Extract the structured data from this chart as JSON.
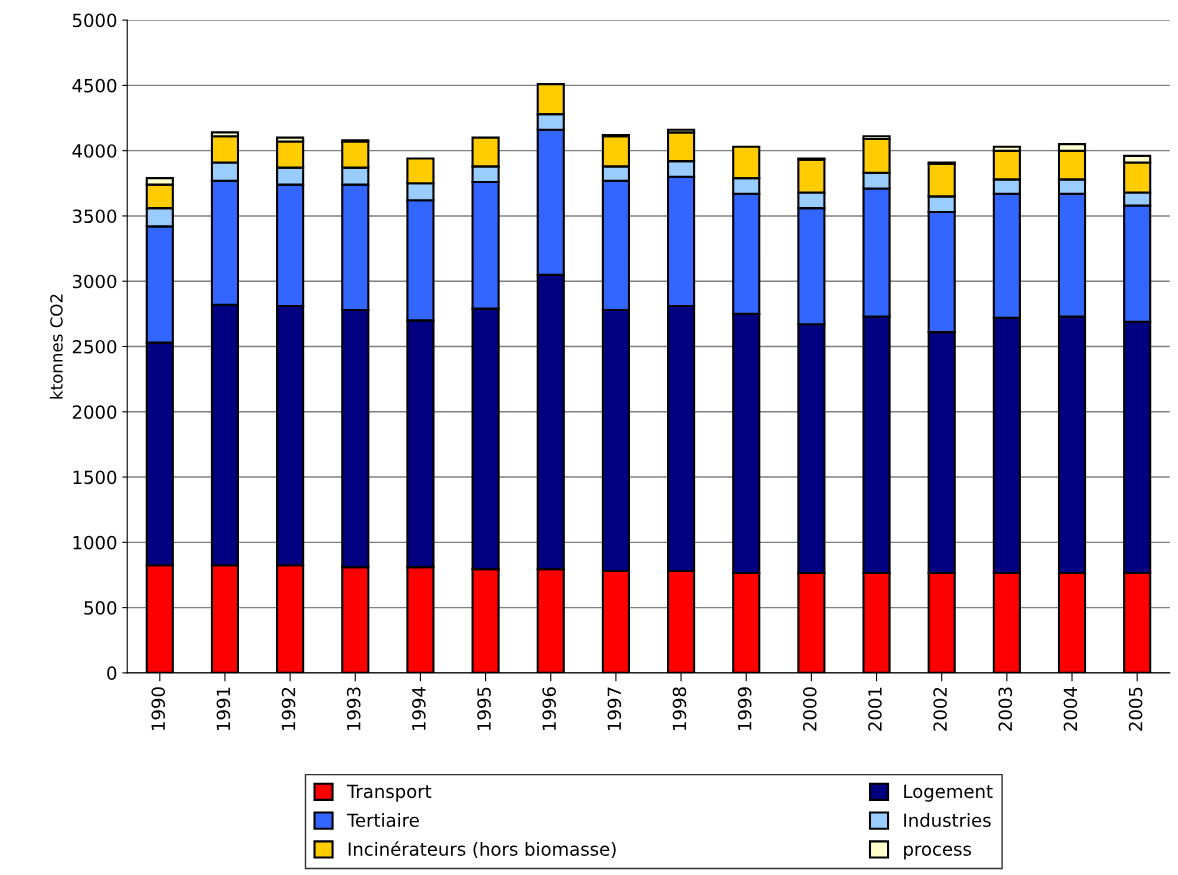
{
  "chart_data": {
    "type": "bar",
    "stacked": true,
    "ylabel": "ktonnes CO2",
    "categories": [
      "1990",
      "1991",
      "1992",
      "1993",
      "1994",
      "1995",
      "1996",
      "1997",
      "1998",
      "1999",
      "2000",
      "2001",
      "2002",
      "2003",
      "2004",
      "2005"
    ],
    "series": [
      {
        "name": "Transport",
        "color": "#ff0000",
        "values": [
          825,
          825,
          825,
          810,
          810,
          795,
          795,
          780,
          780,
          765,
          765,
          765,
          765,
          765,
          765,
          765
        ]
      },
      {
        "name": "Logement",
        "color": "#000080",
        "values": [
          1705,
          1995,
          1985,
          1970,
          1890,
          1995,
          2255,
          2000,
          2030,
          1985,
          1905,
          1965,
          1845,
          1955,
          1965,
          1925
        ]
      },
      {
        "name": "Tertiaire",
        "color": "#3366ff",
        "values": [
          890,
          950,
          930,
          960,
          920,
          970,
          1110,
          990,
          990,
          920,
          890,
          980,
          920,
          950,
          940,
          890
        ]
      },
      {
        "name": "Industries",
        "color": "#99ccff",
        "values": [
          140,
          140,
          130,
          130,
          130,
          120,
          120,
          110,
          120,
          120,
          120,
          120,
          120,
          110,
          110,
          100
        ]
      },
      {
        "name": "Incinérateurs (hors biomasse)",
        "color": "#ffcc00",
        "values": [
          180,
          200,
          200,
          200,
          190,
          220,
          230,
          230,
          220,
          240,
          250,
          260,
          250,
          220,
          220,
          230
        ]
      },
      {
        "name": "process",
        "color": "#ffffcc",
        "values": [
          50,
          30,
          30,
          10,
          0,
          0,
          0,
          10,
          20,
          0,
          10,
          20,
          10,
          30,
          50,
          50
        ]
      }
    ],
    "ylim": [
      0,
      5000
    ],
    "yticks": [
      0,
      500,
      1000,
      1500,
      2000,
      2500,
      3000,
      3500,
      4000,
      4500,
      5000
    ],
    "grid": "y",
    "legend": "bottom"
  }
}
